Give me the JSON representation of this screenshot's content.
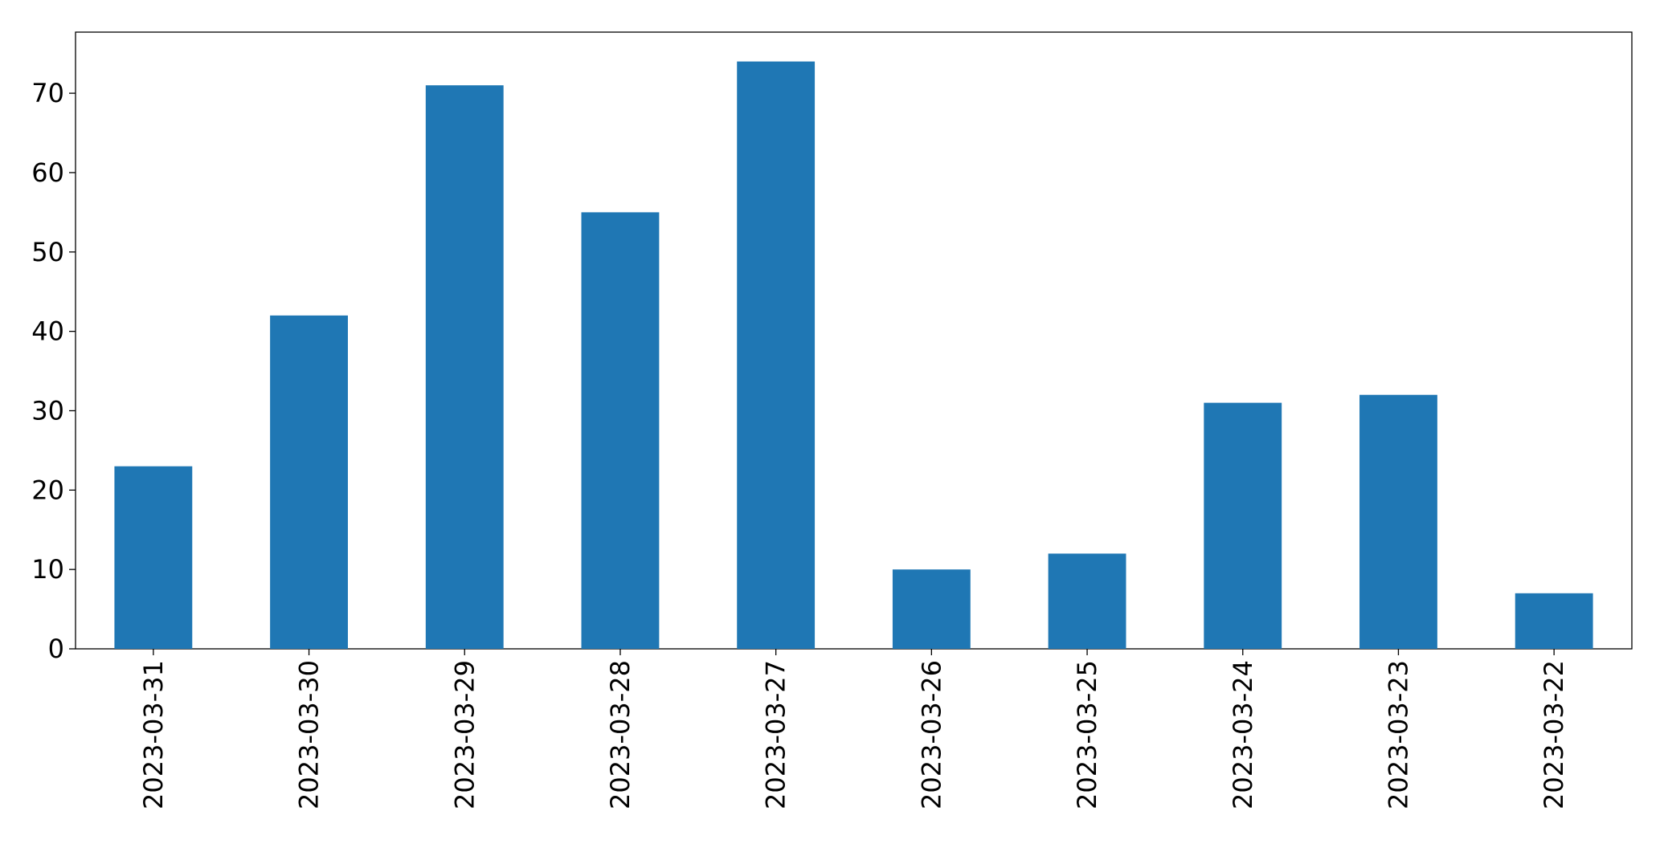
{
  "chart_data": {
    "type": "bar",
    "categories": [
      "2023-03-31",
      "2023-03-30",
      "2023-03-29",
      "2023-03-28",
      "2023-03-27",
      "2023-03-26",
      "2023-03-25",
      "2023-03-24",
      "2023-03-23",
      "2023-03-22"
    ],
    "values": [
      23,
      42,
      71,
      55,
      74,
      10,
      12,
      31,
      32,
      7
    ],
    "color": "#1f77b4",
    "ylim": [
      0,
      77.7
    ],
    "yticks": [
      0,
      10,
      20,
      30,
      40,
      50,
      60,
      70
    ],
    "grid": false
  }
}
